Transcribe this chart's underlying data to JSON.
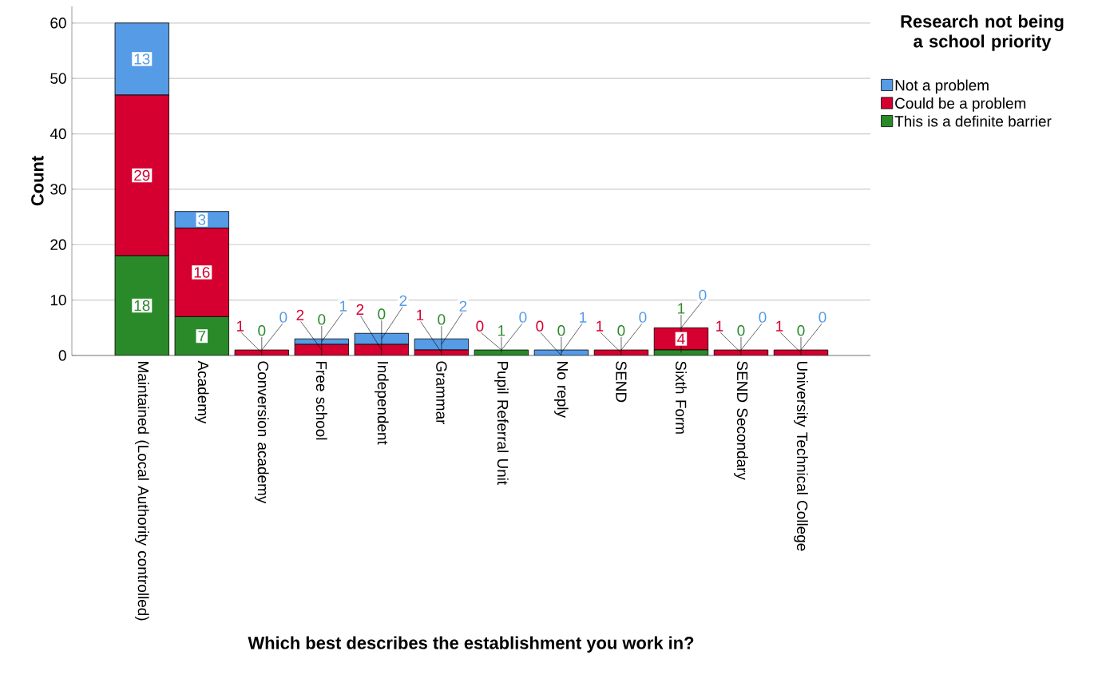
{
  "chart_data": {
    "type": "bar",
    "stacked": true,
    "xlabel": "Which best describes the establishment you work in?",
    "ylabel": "Count",
    "legend_title": "Research not being a school priority",
    "categories": [
      "Maintained (Local Authority controlled)",
      "Academy",
      "Conversion academy",
      "Free school",
      "Independent",
      "Grammar",
      "Pupil Referral Unit",
      "No reply",
      "SEND",
      "Sixth Form",
      "SEND Secondary",
      "University Technical College"
    ],
    "series": [
      {
        "name": "This is a definite barrier",
        "color": "#2a8a2a",
        "values": [
          18,
          7,
          0,
          0,
          0,
          0,
          1,
          0,
          0,
          1,
          0,
          0
        ]
      },
      {
        "name": "Could be a problem",
        "color": "#d5002f",
        "values": [
          29,
          16,
          1,
          2,
          2,
          1,
          0,
          0,
          1,
          4,
          1,
          1
        ]
      },
      {
        "name": "Not a problem",
        "color": "#559be6",
        "values": [
          13,
          3,
          0,
          1,
          2,
          2,
          0,
          1,
          0,
          0,
          0,
          0
        ]
      }
    ],
    "ylim": [
      0,
      63
    ],
    "yticks": [
      0,
      10,
      20,
      30,
      40,
      50,
      60
    ],
    "grid": "y",
    "legend": "top right",
    "data_labels": true
  }
}
